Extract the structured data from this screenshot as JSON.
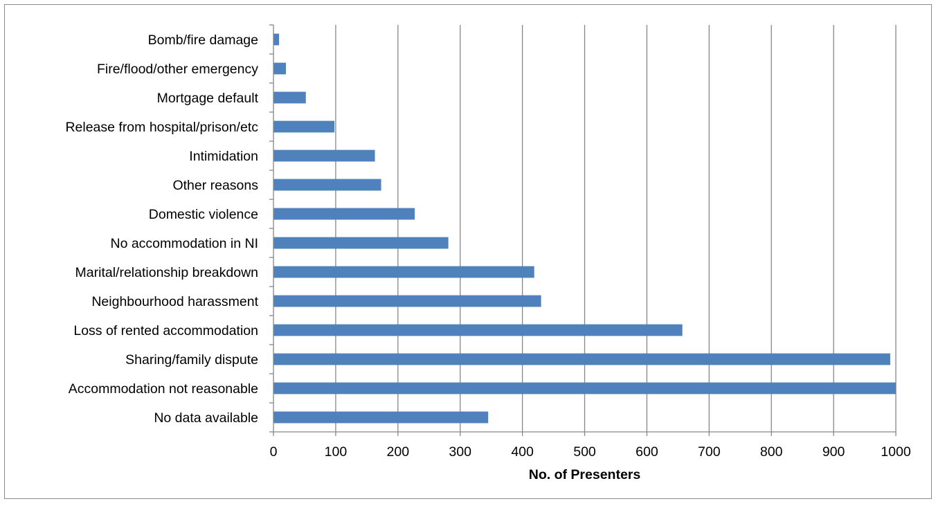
{
  "chart_data": {
    "type": "bar",
    "orientation": "horizontal",
    "categories": [
      "Bomb/fire damage",
      "Fire/flood/other emergency",
      "Mortgage default",
      "Release from hospital/prison/etc",
      "Intimidation",
      "Other reasons",
      "Domestic violence",
      "No accommodation in NI",
      "Marital/relationship breakdown",
      "Neighbourhood harassment",
      "Loss of rented accommodation",
      "Sharing/family dispute",
      "Accommodation not reasonable",
      "No data available"
    ],
    "values": [
      9,
      20,
      52,
      98,
      163,
      173,
      227,
      281,
      419,
      430,
      657,
      991,
      1000,
      345
    ],
    "xlabel": "No. of Presenters",
    "ylabel": "",
    "xlim": [
      0,
      1000
    ],
    "xticks": [
      "0",
      "100",
      "200",
      "300",
      "400",
      "500",
      "600",
      "700",
      "800",
      "900",
      "1000"
    ],
    "grid": "vertical",
    "legend": "none",
    "bar_color": "#4F81BD",
    "grid_color": "#868686"
  }
}
